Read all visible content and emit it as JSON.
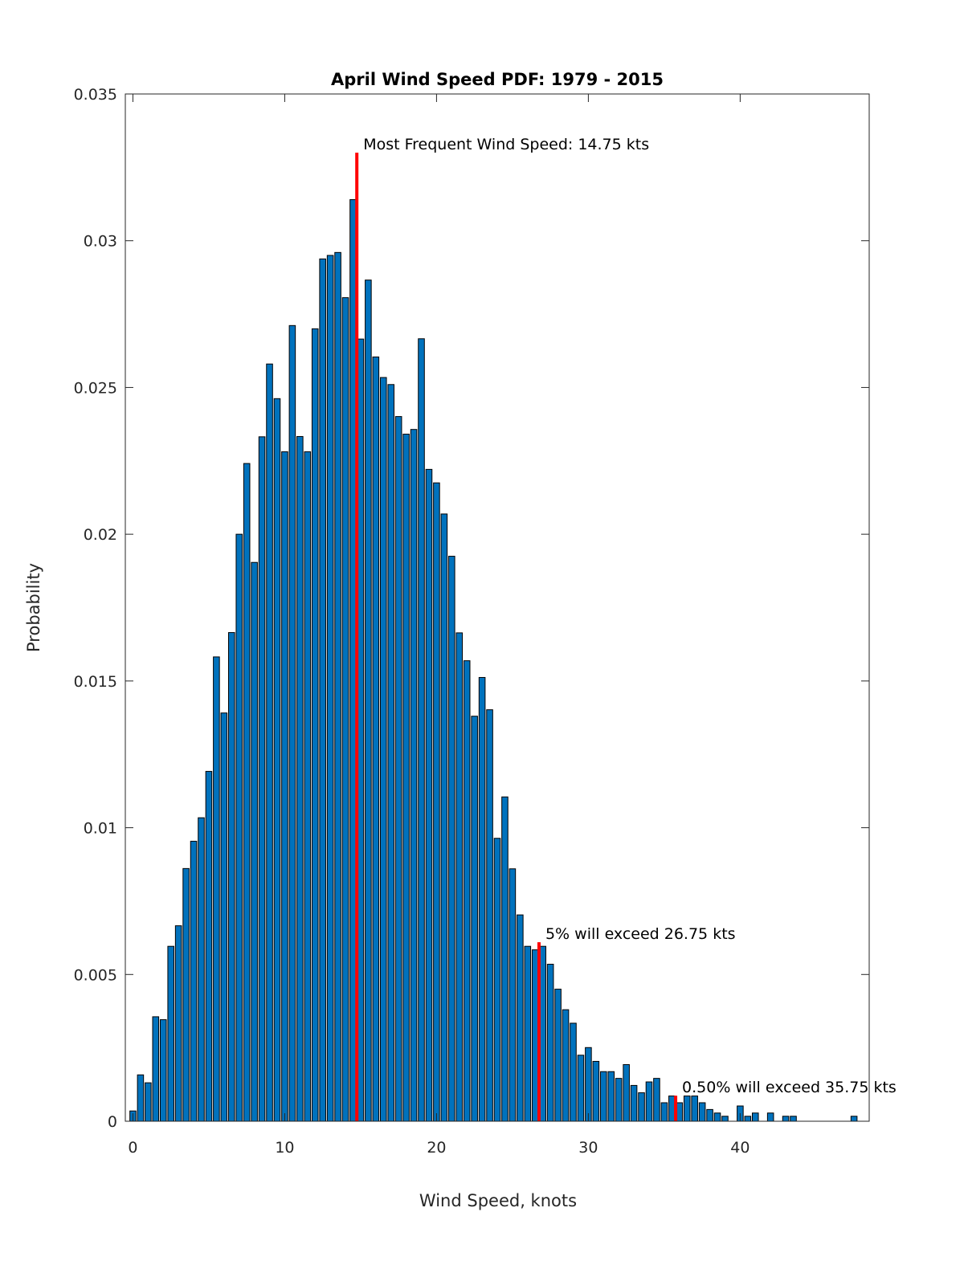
{
  "chart_data": {
    "type": "bar",
    "title": "April Wind Speed PDF: 1979 - 2015",
    "xlabel": "Wind Speed, knots",
    "ylabel": "Probability",
    "xlim": [
      -0.5,
      48.5
    ],
    "ylim": [
      0,
      0.035
    ],
    "xticks": [
      0,
      10,
      20,
      30,
      40
    ],
    "xtick_labels": [
      "0",
      "10",
      "20",
      "30",
      "40"
    ],
    "yticks": [
      0,
      0.005,
      0.01,
      0.015,
      0.02,
      0.025,
      0.03,
      0.035
    ],
    "ytick_labels": [
      "0",
      "0.005",
      "0.01",
      "0.015",
      "0.02",
      "0.025",
      "0.03",
      "0.035"
    ],
    "grid": false,
    "bar_color": "#0072BD",
    "bar_width": 0.4,
    "x": [
      0,
      0.5,
      1,
      1.5,
      2,
      2.5,
      3,
      3.5,
      4,
      4.5,
      5,
      5.5,
      6,
      6.5,
      7,
      7.5,
      8,
      8.5,
      9,
      9.5,
      10,
      10.5,
      11,
      11.5,
      12,
      12.5,
      13,
      13.5,
      14,
      14.5,
      15,
      15.5,
      16,
      16.5,
      17,
      17.5,
      18,
      18.5,
      19,
      19.5,
      20,
      20.5,
      21,
      21.5,
      22,
      22.5,
      23,
      23.5,
      24,
      24.5,
      25,
      25.5,
      26,
      26.5,
      27,
      27.5,
      28,
      28.5,
      29,
      29.5,
      30,
      30.5,
      31,
      31.5,
      32,
      32.5,
      33,
      33.5,
      34,
      34.5,
      35,
      35.5,
      36,
      36.5,
      37,
      37.5,
      38,
      38.5,
      39,
      39.5,
      40,
      40.5,
      41,
      41.5,
      42,
      42.5,
      43,
      43.5,
      44,
      44.5,
      45,
      45.5,
      46,
      46.5,
      47,
      47.5
    ],
    "values": [
      0.00035,
      0.00158,
      0.00131,
      0.00356,
      0.00346,
      0.00596,
      0.00666,
      0.00861,
      0.00954,
      0.01034,
      0.01192,
      0.01582,
      0.01391,
      0.01665,
      0.02,
      0.02241,
      0.01904,
      0.02332,
      0.0258,
      0.02462,
      0.02281,
      0.02711,
      0.02333,
      0.02281,
      0.027,
      0.02938,
      0.0295,
      0.0296,
      0.02806,
      0.0314,
      0.02665,
      0.02866,
      0.02604,
      0.02534,
      0.0251,
      0.02401,
      0.02341,
      0.02357,
      0.02666,
      0.02221,
      0.02175,
      0.02069,
      0.01925,
      0.01664,
      0.01569,
      0.0138,
      0.01512,
      0.01402,
      0.00964,
      0.01105,
      0.0086,
      0.00703,
      0.00596,
      0.00584,
      0.00596,
      0.00535,
      0.0045,
      0.0038,
      0.00334,
      0.00225,
      0.00251,
      0.00204,
      0.00169,
      0.00169,
      0.00146,
      0.00193,
      0.00122,
      0.00097,
      0.00134,
      0.00146,
      0.00063,
      0.00086,
      0.00063,
      0.00086,
      0.00086,
      0.00063,
      0.0004,
      0.00028,
      0.00017,
      0,
      0.00052,
      0.00017,
      0.00028,
      0,
      0.00028,
      0,
      0.00017,
      0.00017,
      0,
      0,
      0,
      0,
      0,
      0,
      0,
      0.00017
    ],
    "markers": [
      {
        "x": 14.75,
        "y_top": 0.033,
        "label": "Most Frequent Wind Speed: 14.75 kts",
        "color": "#FF0000"
      },
      {
        "x": 26.75,
        "y_top": 0.0061,
        "label": "5% will exceed 26.75 kts",
        "color": "#FF0000"
      },
      {
        "x": 35.75,
        "y_top": 0.00087,
        "label": "0.50% will exceed 35.75 kts",
        "color": "#FF0000"
      }
    ]
  }
}
